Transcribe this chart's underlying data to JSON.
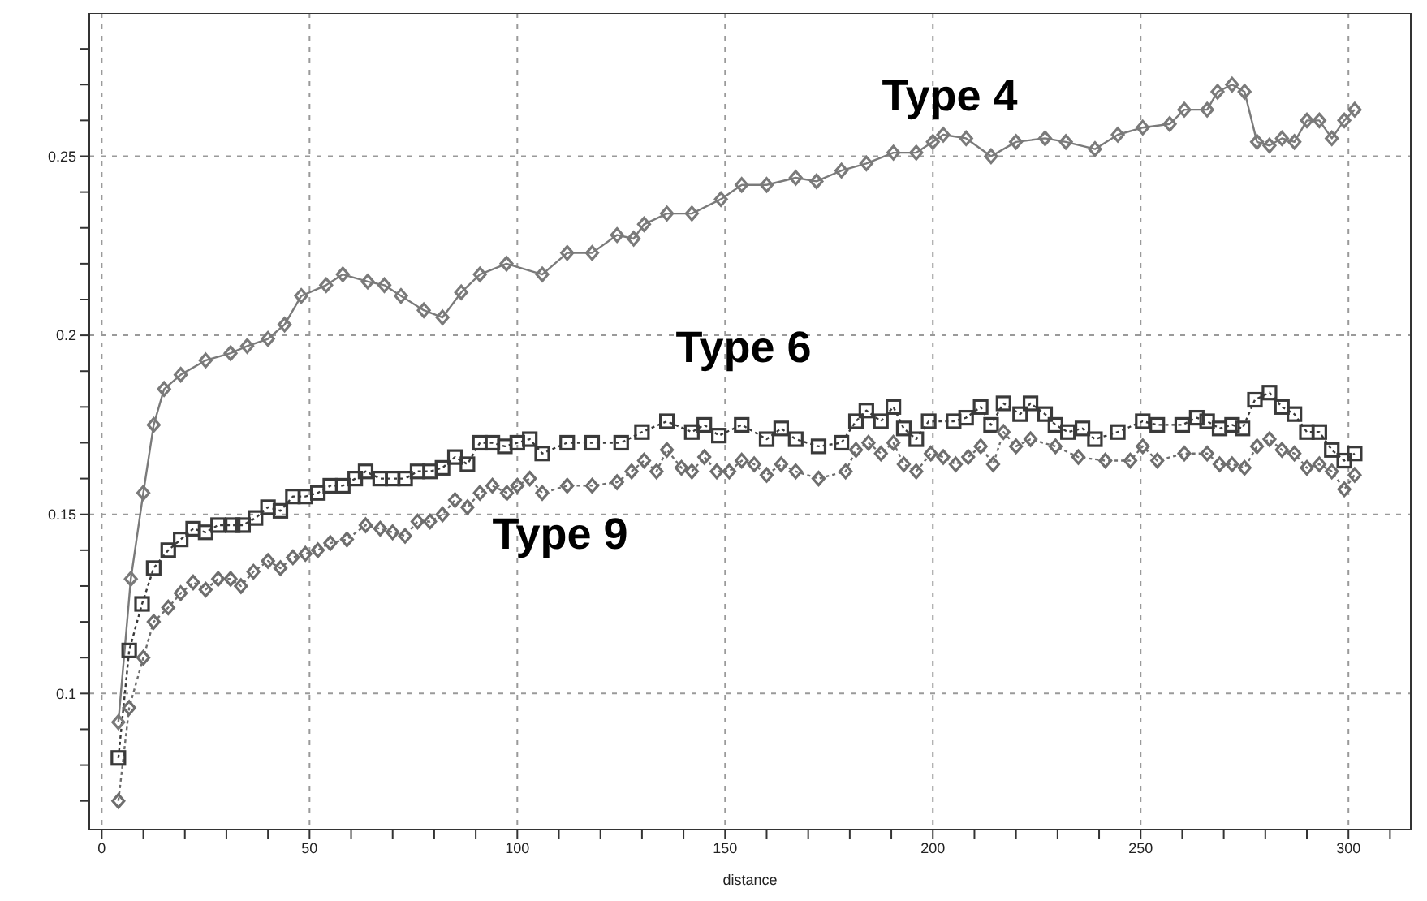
{
  "chart_data": {
    "type": "line",
    "xlabel": "distance",
    "xlim": [
      -3,
      315
    ],
    "ylim": [
      0.062,
      0.29
    ],
    "xticks": [
      0,
      {
        "value": 10,
        "label": null
      },
      {
        "value": 20,
        "label": null
      },
      {
        "value": 30,
        "label": null
      },
      {
        "value": 40,
        "label": null
      },
      50,
      {
        "value": 60,
        "label": null
      },
      {
        "value": 70,
        "label": null
      },
      {
        "value": 80,
        "label": null
      },
      {
        "value": 90,
        "label": null
      },
      100,
      {
        "value": 110,
        "label": null
      },
      {
        "value": 120,
        "label": null
      },
      {
        "value": 130,
        "label": null
      },
      {
        "value": 140,
        "label": null
      },
      150,
      {
        "value": 160,
        "label": null
      },
      {
        "value": 170,
        "label": null
      },
      {
        "value": 180,
        "label": null
      },
      {
        "value": 190,
        "label": null
      },
      200,
      {
        "value": 210,
        "label": null
      },
      {
        "value": 220,
        "label": null
      },
      {
        "value": 230,
        "label": null
      },
      {
        "value": 240,
        "label": null
      },
      250,
      {
        "value": 260,
        "label": null
      },
      {
        "value": 270,
        "label": null
      },
      {
        "value": 280,
        "label": null
      },
      {
        "value": 290,
        "label": null
      },
      300,
      {
        "value": 310,
        "label": null
      }
    ],
    "yticks": [
      {
        "value": 0.07,
        "label": null
      },
      {
        "value": 0.08,
        "label": null
      },
      {
        "value": 0.09,
        "label": null
      },
      0.1,
      {
        "value": 0.11,
        "label": null
      },
      {
        "value": 0.12,
        "label": null
      },
      {
        "value": 0.13,
        "label": null
      },
      {
        "value": 0.14,
        "label": null
      },
      0.15,
      {
        "value": 0.16,
        "label": null
      },
      {
        "value": 0.17,
        "label": null
      },
      {
        "value": 0.18,
        "label": null
      },
      {
        "value": 0.19,
        "label": null
      },
      0.2,
      {
        "value": 0.21,
        "label": null
      },
      {
        "value": 0.22,
        "label": null
      },
      {
        "value": 0.23,
        "label": null
      },
      {
        "value": 0.24,
        "label": null
      },
      0.25,
      {
        "value": 0.26,
        "label": null
      },
      {
        "value": 0.27,
        "label": null
      },
      {
        "value": 0.28,
        "label": null
      }
    ],
    "grid": true,
    "series": [
      {
        "name": "Type 4",
        "color": "#7a7a7a",
        "marker": "diamond",
        "line_style": "solid",
        "x": [
          4,
          7,
          10,
          12.5,
          15,
          19,
          25,
          31,
          35,
          40,
          44,
          48,
          54,
          58,
          64,
          68,
          72,
          77.5,
          82,
          86.5,
          91,
          97.4,
          106,
          112,
          118,
          124,
          128,
          130.5,
          136,
          142,
          149,
          154,
          160,
          167,
          172,
          178,
          184,
          190.5,
          196,
          200,
          202.5,
          208,
          214,
          220,
          227,
          232,
          239,
          244.5,
          250.5,
          257,
          260.5,
          266,
          268.5,
          272,
          275,
          278,
          281,
          284,
          287,
          290,
          293,
          296,
          299,
          301.5
        ],
        "values": [
          0.092,
          0.132,
          0.156,
          0.175,
          0.185,
          0.189,
          0.193,
          0.195,
          0.197,
          0.199,
          0.203,
          0.211,
          0.214,
          0.217,
          0.215,
          0.214,
          0.211,
          0.207,
          0.205,
          0.212,
          0.217,
          0.22,
          0.217,
          0.223,
          0.223,
          0.228,
          0.227,
          0.231,
          0.234,
          0.234,
          0.238,
          0.242,
          0.242,
          0.244,
          0.243,
          0.246,
          0.248,
          0.251,
          0.251,
          0.254,
          0.256,
          0.255,
          0.25,
          0.254,
          0.255,
          0.254,
          0.252,
          0.256,
          0.258,
          0.259,
          0.263,
          0.263,
          0.268,
          0.27,
          0.268,
          0.254,
          0.253,
          0.255,
          0.254,
          0.26,
          0.26,
          0.255,
          0.26,
          0.263
        ]
      },
      {
        "name": "Type 6",
        "color": "#3a3a3a",
        "marker": "square",
        "line_style": "dotted",
        "x": [
          4,
          6.6,
          9.7,
          12.5,
          16,
          19,
          22,
          25,
          28,
          31.5,
          34,
          37,
          40,
          43,
          46,
          49,
          52,
          55,
          58,
          61,
          63.5,
          67,
          70,
          73,
          76,
          79,
          82,
          85,
          88,
          91,
          94,
          97,
          100,
          103,
          106,
          112,
          118,
          125,
          130,
          136,
          142,
          145,
          148.5,
          154,
          160,
          163.5,
          167,
          172.5,
          178,
          181.5,
          184,
          187.5,
          190.5,
          193,
          196,
          199,
          205,
          208,
          211.5,
          214,
          217,
          221,
          223.5,
          227,
          229.5,
          232.5,
          236,
          239,
          244.5,
          250.5,
          254,
          260,
          263.5,
          266,
          269,
          272,
          274.5,
          277.5,
          281,
          284,
          287,
          290,
          293,
          296,
          299,
          301.5
        ],
        "values": [
          0.082,
          0.112,
          0.125,
          0.135,
          0.14,
          0.143,
          0.146,
          0.145,
          0.147,
          0.147,
          0.147,
          0.149,
          0.152,
          0.151,
          0.155,
          0.155,
          0.156,
          0.158,
          0.158,
          0.16,
          0.162,
          0.16,
          0.16,
          0.16,
          0.162,
          0.162,
          0.163,
          0.166,
          0.164,
          0.17,
          0.17,
          0.169,
          0.17,
          0.171,
          0.167,
          0.17,
          0.17,
          0.17,
          0.173,
          0.176,
          0.173,
          0.175,
          0.172,
          0.175,
          0.171,
          0.174,
          0.171,
          0.169,
          0.17,
          0.176,
          0.179,
          0.176,
          0.18,
          0.174,
          0.171,
          0.176,
          0.176,
          0.177,
          0.18,
          0.175,
          0.181,
          0.178,
          0.181,
          0.178,
          0.175,
          0.173,
          0.174,
          0.171,
          0.173,
          0.176,
          0.175,
          0.175,
          0.177,
          0.176,
          0.174,
          0.175,
          0.174,
          0.182,
          0.184,
          0.18,
          0.178,
          0.173,
          0.173,
          0.168,
          0.165,
          0.167
        ]
      },
      {
        "name": "Type 9",
        "color": "#6e6e6e",
        "marker": "diamond",
        "line_style": "dotted",
        "x": [
          4,
          6.6,
          10,
          12.5,
          16,
          19,
          22,
          25,
          28,
          31,
          33.5,
          36.5,
          40,
          43,
          46,
          49,
          52,
          55,
          59,
          63.5,
          67,
          70,
          73,
          76,
          79,
          82,
          85,
          88,
          91,
          94,
          97.5,
          100,
          103,
          106,
          112,
          118,
          124,
          127.5,
          130.5,
          133.5,
          136,
          139.5,
          142,
          145,
          148,
          151,
          154,
          157,
          160,
          163.5,
          167,
          172.5,
          179,
          181.5,
          184.5,
          187.5,
          190.5,
          193,
          196,
          199.5,
          202.5,
          205.5,
          208.5,
          211.5,
          214.5,
          217,
          220,
          223.5,
          229.5,
          235,
          241.5,
          247.5,
          250.5,
          254,
          260.5,
          266,
          269,
          272,
          275,
          278,
          281,
          284,
          287,
          290,
          293,
          296,
          299,
          301.5
        ],
        "values": [
          0.07,
          0.096,
          0.11,
          0.12,
          0.124,
          0.128,
          0.131,
          0.129,
          0.132,
          0.132,
          0.13,
          0.134,
          0.137,
          0.135,
          0.138,
          0.139,
          0.14,
          0.142,
          0.143,
          0.147,
          0.146,
          0.145,
          0.144,
          0.148,
          0.148,
          0.15,
          0.154,
          0.152,
          0.156,
          0.158,
          0.156,
          0.158,
          0.16,
          0.156,
          0.158,
          0.158,
          0.159,
          0.162,
          0.165,
          0.162,
          0.168,
          0.163,
          0.162,
          0.166,
          0.162,
          0.162,
          0.165,
          0.164,
          0.161,
          0.164,
          0.162,
          0.16,
          0.162,
          0.168,
          0.17,
          0.167,
          0.17,
          0.164,
          0.162,
          0.167,
          0.166,
          0.164,
          0.166,
          0.169,
          0.164,
          0.173,
          0.169,
          0.171,
          0.169,
          0.166,
          0.165,
          0.165,
          0.169,
          0.165,
          0.167,
          0.167,
          0.164,
          0.164,
          0.163,
          0.169,
          0.171,
          0.168,
          0.167,
          0.163,
          0.164,
          0.162,
          0.157,
          0.161
        ]
      }
    ]
  }
}
